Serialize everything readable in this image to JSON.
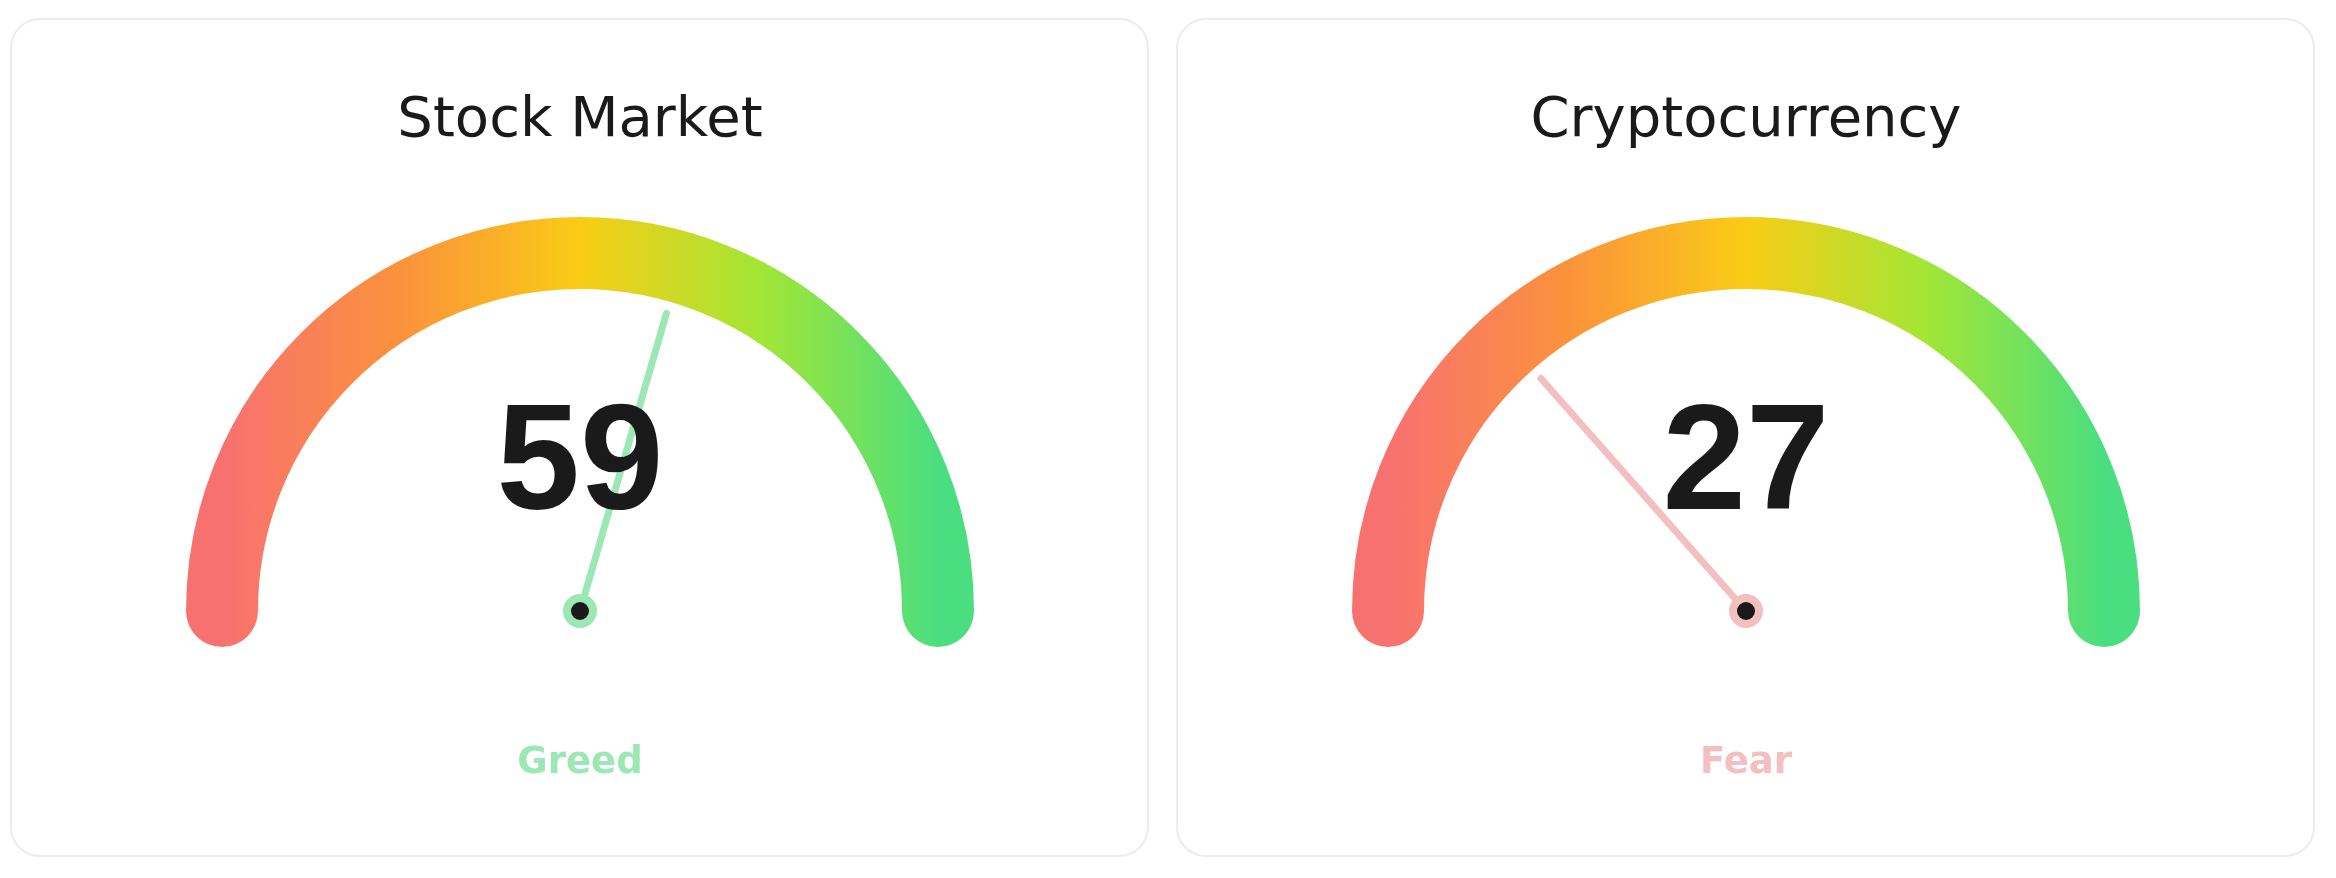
{
  "chart_data": [
    {
      "type": "other",
      "title": "Stock Market",
      "values": [
        59
      ],
      "data_labels": true,
      "annotations": [
        "Greed"
      ]
    },
    {
      "type": "other",
      "title": "Cryptocurrency",
      "values": [
        27
      ],
      "data_labels": true,
      "annotations": [
        "Fear"
      ]
    }
  ]
}
